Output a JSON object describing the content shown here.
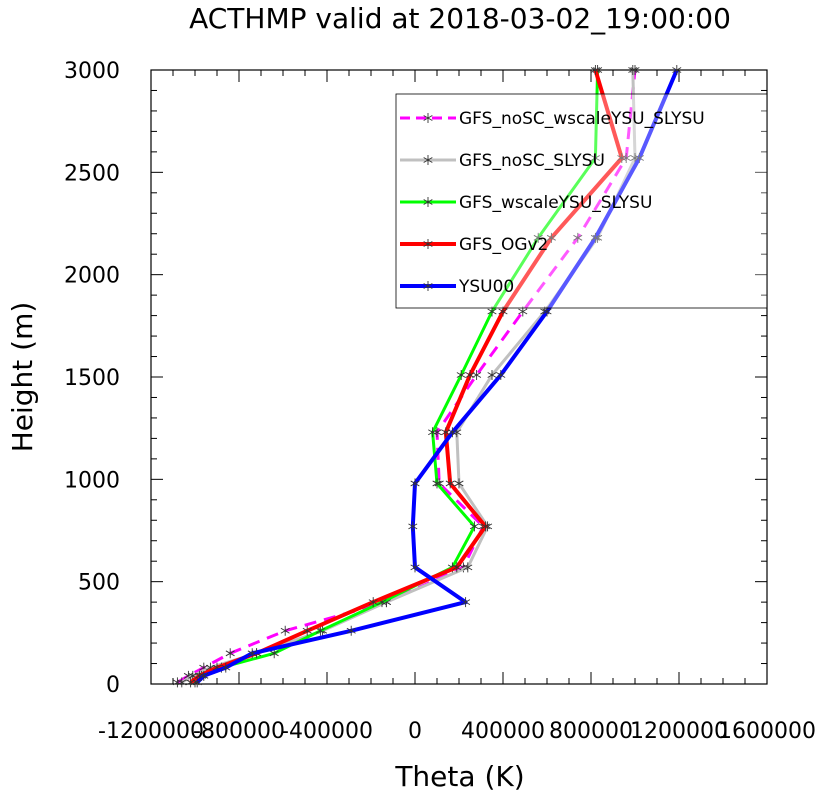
{
  "chart_data": {
    "type": "line",
    "title": "ACTHMP valid at 2018-03-02_19:00:00",
    "xlabel": "Theta (K)",
    "ylabel": "Height (m)",
    "xlim": [
      -1200000,
      1600000
    ],
    "ylim": [
      0,
      3000
    ],
    "x_ticks": [
      -1200000,
      -800000,
      -400000,
      0,
      400000,
      800000,
      1200000,
      1600000
    ],
    "x_tick_labels": [
      "-1200000",
      "-800000",
      "-400000",
      "0",
      "400000",
      "800000",
      "1200000",
      "1600000"
    ],
    "y_ticks": [
      0,
      500,
      1000,
      1500,
      2000,
      2500,
      3000
    ],
    "y_tick_labels": [
      "0",
      "500",
      "1000",
      "1500",
      "2000",
      "2500",
      "3000"
    ],
    "grid": false,
    "legend_position": "top-right",
    "heights": [
      8,
      40,
      80,
      150,
      260,
      400,
      570,
      770,
      980,
      1230,
      1510,
      1820,
      2180,
      2570,
      3000
    ],
    "series": [
      {
        "name": "GFS_noSC_wscaleYSU_SLYSU",
        "color": "#ff00ff",
        "dashed": true,
        "x": [
          -1080000,
          -1030000,
          -960000,
          -840000,
          -590000,
          -130000,
          220000,
          310000,
          110000,
          100000,
          280000,
          490000,
          740000,
          960000,
          1000000
        ]
      },
      {
        "name": "GFS_noSC_SLYSU",
        "color": "#c0c0c0",
        "dashed": false,
        "x": [
          -1060000,
          -1010000,
          -930000,
          -720000,
          -420000,
          -130000,
          240000,
          330000,
          200000,
          190000,
          350000,
          590000,
          830000,
          1000000,
          990000
        ]
      },
      {
        "name": "GFS_wscaleYSU_SLYSU",
        "color": "#00ff00",
        "dashed": false,
        "x": [
          -1000000,
          -970000,
          -880000,
          -640000,
          -430000,
          -150000,
          170000,
          270000,
          100000,
          80000,
          210000,
          350000,
          560000,
          820000,
          830000
        ]
      },
      {
        "name": "GFS_OGv2",
        "color": "#ff0000",
        "dashed": false,
        "x": [
          -1020000,
          -980000,
          -900000,
          -720000,
          -490000,
          -190000,
          190000,
          320000,
          160000,
          140000,
          250000,
          400000,
          620000,
          940000,
          820000
        ]
      },
      {
        "name": "YSU00",
        "color": "#0000ff",
        "dashed": false,
        "x": [
          -990000,
          -960000,
          -860000,
          -740000,
          -290000,
          230000,
          0,
          -10000,
          0,
          170000,
          390000,
          600000,
          820000,
          1020000,
          1190000
        ]
      }
    ]
  }
}
